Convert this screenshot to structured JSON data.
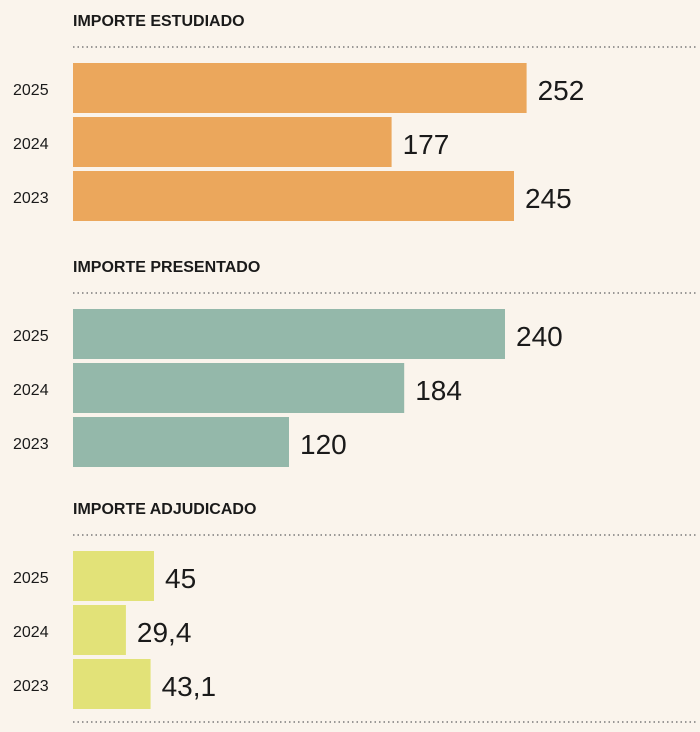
{
  "chart_data": [
    {
      "type": "bar",
      "orientation": "horizontal",
      "title": "IMPORTE ESTUDIADO",
      "categories": [
        "2025",
        "2024",
        "2023"
      ],
      "values": [
        252,
        177,
        245
      ],
      "value_labels": [
        "252",
        "177",
        "245"
      ],
      "color": "#eba75c"
    },
    {
      "type": "bar",
      "orientation": "horizontal",
      "title": "IMPORTE PRESENTADO",
      "categories": [
        "2025",
        "2024",
        "2023"
      ],
      "values": [
        240,
        184,
        120
      ],
      "value_labels": [
        "240",
        "184",
        "120"
      ],
      "color": "#94b8aa"
    },
    {
      "type": "bar",
      "orientation": "horizontal",
      "title": "IMPORTE ADJUDICADO",
      "categories": [
        "2025",
        "2024",
        "2023"
      ],
      "values": [
        45,
        29.4,
        43.1
      ],
      "value_labels": [
        "45",
        "29,4",
        "43,1"
      ],
      "color": "#e2e278"
    }
  ]
}
